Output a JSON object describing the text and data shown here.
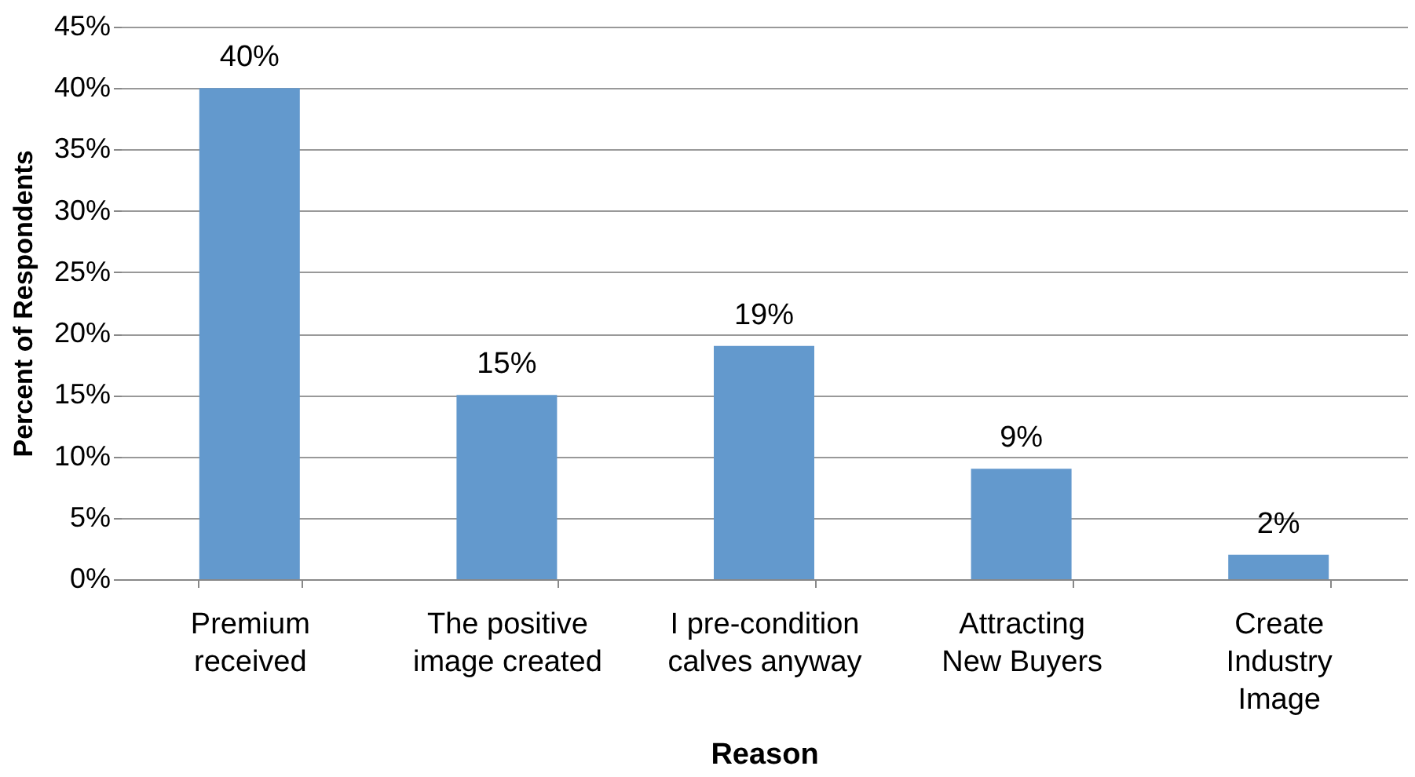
{
  "chart_data": {
    "type": "bar",
    "xlabel": "Reason",
    "ylabel": "Percent of Respondents",
    "categories": [
      "Premium\nreceived",
      "The positive\nimage created",
      "I pre-condition\ncalves anyway",
      "Attracting\nNew Buyers",
      "Create\nIndustry\nImage"
    ],
    "values": [
      40,
      15,
      19,
      9,
      2
    ],
    "value_labels": [
      "40%",
      "15%",
      "19%",
      "9%",
      "2%"
    ],
    "color": "#6399cd",
    "ylim": [
      0,
      45
    ],
    "yticks": [
      {
        "value": 0,
        "label": "0%"
      },
      {
        "value": 5,
        "label": "5%"
      },
      {
        "value": 10,
        "label": "10%"
      },
      {
        "value": 15,
        "label": "15%"
      },
      {
        "value": 20,
        "label": "20%"
      },
      {
        "value": 25,
        "label": "25%"
      },
      {
        "value": 30,
        "label": "30%"
      },
      {
        "value": 35,
        "label": "35%"
      },
      {
        "value": 40,
        "label": "40%"
      },
      {
        "value": 45,
        "label": "45%"
      }
    ],
    "grid": "y"
  }
}
